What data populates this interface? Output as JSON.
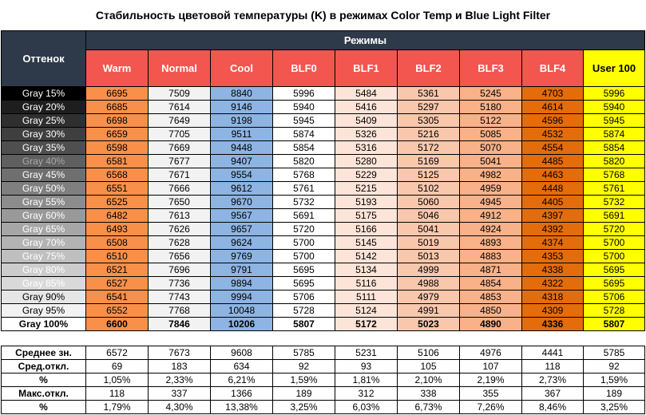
{
  "chart_data": {
    "type": "table",
    "title": "Стабильность цветовой температуры (K) в режимах Color Temp и Blue Light Filter",
    "row_header": "Оттенок",
    "group_header": "Режимы",
    "columns": [
      "Warm",
      "Normal",
      "Cool",
      "BLF0",
      "BLF1",
      "BLF2",
      "BLF3",
      "BLF4",
      "User 100"
    ],
    "column_colors": [
      "#f9904a",
      "#f2f2f2",
      "#8db4e2",
      "#ffffff",
      "#fde4d8",
      "#f9c7ac",
      "#f9b189",
      "#e46c0a",
      "#ffff00"
    ],
    "rows": [
      {
        "label": "Gray 15%",
        "shade": "#000000",
        "text": "#ffffff",
        "values": [
          6695,
          7509,
          8840,
          5996,
          5484,
          5361,
          5245,
          4703,
          5996
        ]
      },
      {
        "label": "Gray 20%",
        "shade": "#1e1e1e",
        "text": "#ffffff",
        "values": [
          6685,
          7614,
          9146,
          5940,
          5416,
          5297,
          5180,
          4614,
          5940
        ]
      },
      {
        "label": "Gray 25%",
        "shade": "#2f2f2f",
        "text": "#ffffff",
        "values": [
          6698,
          7649,
          9198,
          5945,
          5409,
          5305,
          5122,
          4596,
          5945
        ]
      },
      {
        "label": "Gray 30%",
        "shade": "#3f3f3f",
        "text": "#ffffff",
        "values": [
          6659,
          7705,
          9511,
          5874,
          5326,
          5216,
          5085,
          4532,
          5874
        ]
      },
      {
        "label": "Gray 35%",
        "shade": "#4f4f4f",
        "text": "#ffffff",
        "values": [
          6598,
          7669,
          9448,
          5854,
          5316,
          5172,
          5070,
          4554,
          5854
        ]
      },
      {
        "label": "Gray 40%",
        "shade": "#5f5f5f",
        "text": "#a8a8a8",
        "values": [
          6581,
          7677,
          9407,
          5820,
          5280,
          5169,
          5041,
          4485,
          5820
        ]
      },
      {
        "label": "Gray 45%",
        "shade": "#6f6f6f",
        "text": "#ffffff",
        "values": [
          6568,
          7671,
          9554,
          5768,
          5229,
          5125,
          4982,
          4463,
          5768
        ]
      },
      {
        "label": "Gray 50%",
        "shade": "#7f7f7f",
        "text": "#ffffff",
        "values": [
          6551,
          7666,
          9612,
          5761,
          5215,
          5102,
          4959,
          4448,
          5761
        ]
      },
      {
        "label": "Gray 55%",
        "shade": "#8c8c8c",
        "text": "#ffffff",
        "values": [
          6525,
          7650,
          9670,
          5732,
          5193,
          5060,
          4945,
          4405,
          5732
        ]
      },
      {
        "label": "Gray 60%",
        "shade": "#999999",
        "text": "#ffffff",
        "values": [
          6482,
          7613,
          9567,
          5691,
          5175,
          5046,
          4912,
          4397,
          5691
        ]
      },
      {
        "label": "Gray 65%",
        "shade": "#a6a6a6",
        "text": "#ffffff",
        "values": [
          6493,
          7626,
          9657,
          5720,
          5166,
          5041,
          4924,
          4392,
          5720
        ]
      },
      {
        "label": "Gray 70%",
        "shade": "#b3b3b3",
        "text": "#ffffff",
        "values": [
          6508,
          7628,
          9624,
          5700,
          5145,
          5019,
          4893,
          4374,
          5700
        ]
      },
      {
        "label": "Gray 75%",
        "shade": "#bfbfbf",
        "text": "#ffffff",
        "values": [
          6510,
          7656,
          9769,
          5700,
          5142,
          5013,
          4883,
          4353,
          5700
        ]
      },
      {
        "label": "Gray 80%",
        "shade": "#cccccc",
        "text": "#ffffff",
        "values": [
          6521,
          7696,
          9791,
          5695,
          5134,
          4999,
          4871,
          4338,
          5695
        ]
      },
      {
        "label": "Gray 85%",
        "shade": "#d9d9d9",
        "text": "#ffffff",
        "values": [
          6527,
          7736,
          9894,
          5695,
          5116,
          4988,
          4854,
          4322,
          5695
        ]
      },
      {
        "label": "Gray 90%",
        "shade": "#e6e6e6",
        "text": "#000000",
        "values": [
          6541,
          7743,
          9994,
          5706,
          5111,
          4979,
          4853,
          4318,
          5706
        ]
      },
      {
        "label": "Gray 95%",
        "shade": "#f2f2f2",
        "text": "#000000",
        "values": [
          6552,
          7768,
          10048,
          5728,
          5124,
          4991,
          4850,
          4309,
          5728
        ]
      },
      {
        "label": "Gray 100%",
        "shade": "#ffffff",
        "text": "#000000",
        "bold": true,
        "values": [
          6600,
          7846,
          10206,
          5807,
          5172,
          5023,
          4890,
          4336,
          5807
        ]
      }
    ],
    "stats": [
      {
        "label": "Среднее зн.",
        "values": [
          "6572",
          "7673",
          "9608",
          "5785",
          "5231",
          "5106",
          "4976",
          "4441",
          "5785"
        ]
      },
      {
        "label": "Сред.откл.",
        "values": [
          "69",
          "183",
          "634",
          "92",
          "93",
          "105",
          "107",
          "118",
          "92"
        ]
      },
      {
        "label": "%",
        "values": [
          "1,05%",
          "2,33%",
          "6,21%",
          "1,59%",
          "1,81%",
          "2,10%",
          "2,19%",
          "2,73%",
          "1,59%"
        ]
      },
      {
        "label": "Макс.откл.",
        "values": [
          "118",
          "337",
          "1366",
          "189",
          "312",
          "338",
          "355",
          "367",
          "189"
        ]
      },
      {
        "label": "%",
        "values": [
          "1,79%",
          "4,30%",
          "13,38%",
          "3,25%",
          "6,03%",
          "6,73%",
          "7,26%",
          "8,46%",
          "3,25%"
        ]
      }
    ]
  }
}
